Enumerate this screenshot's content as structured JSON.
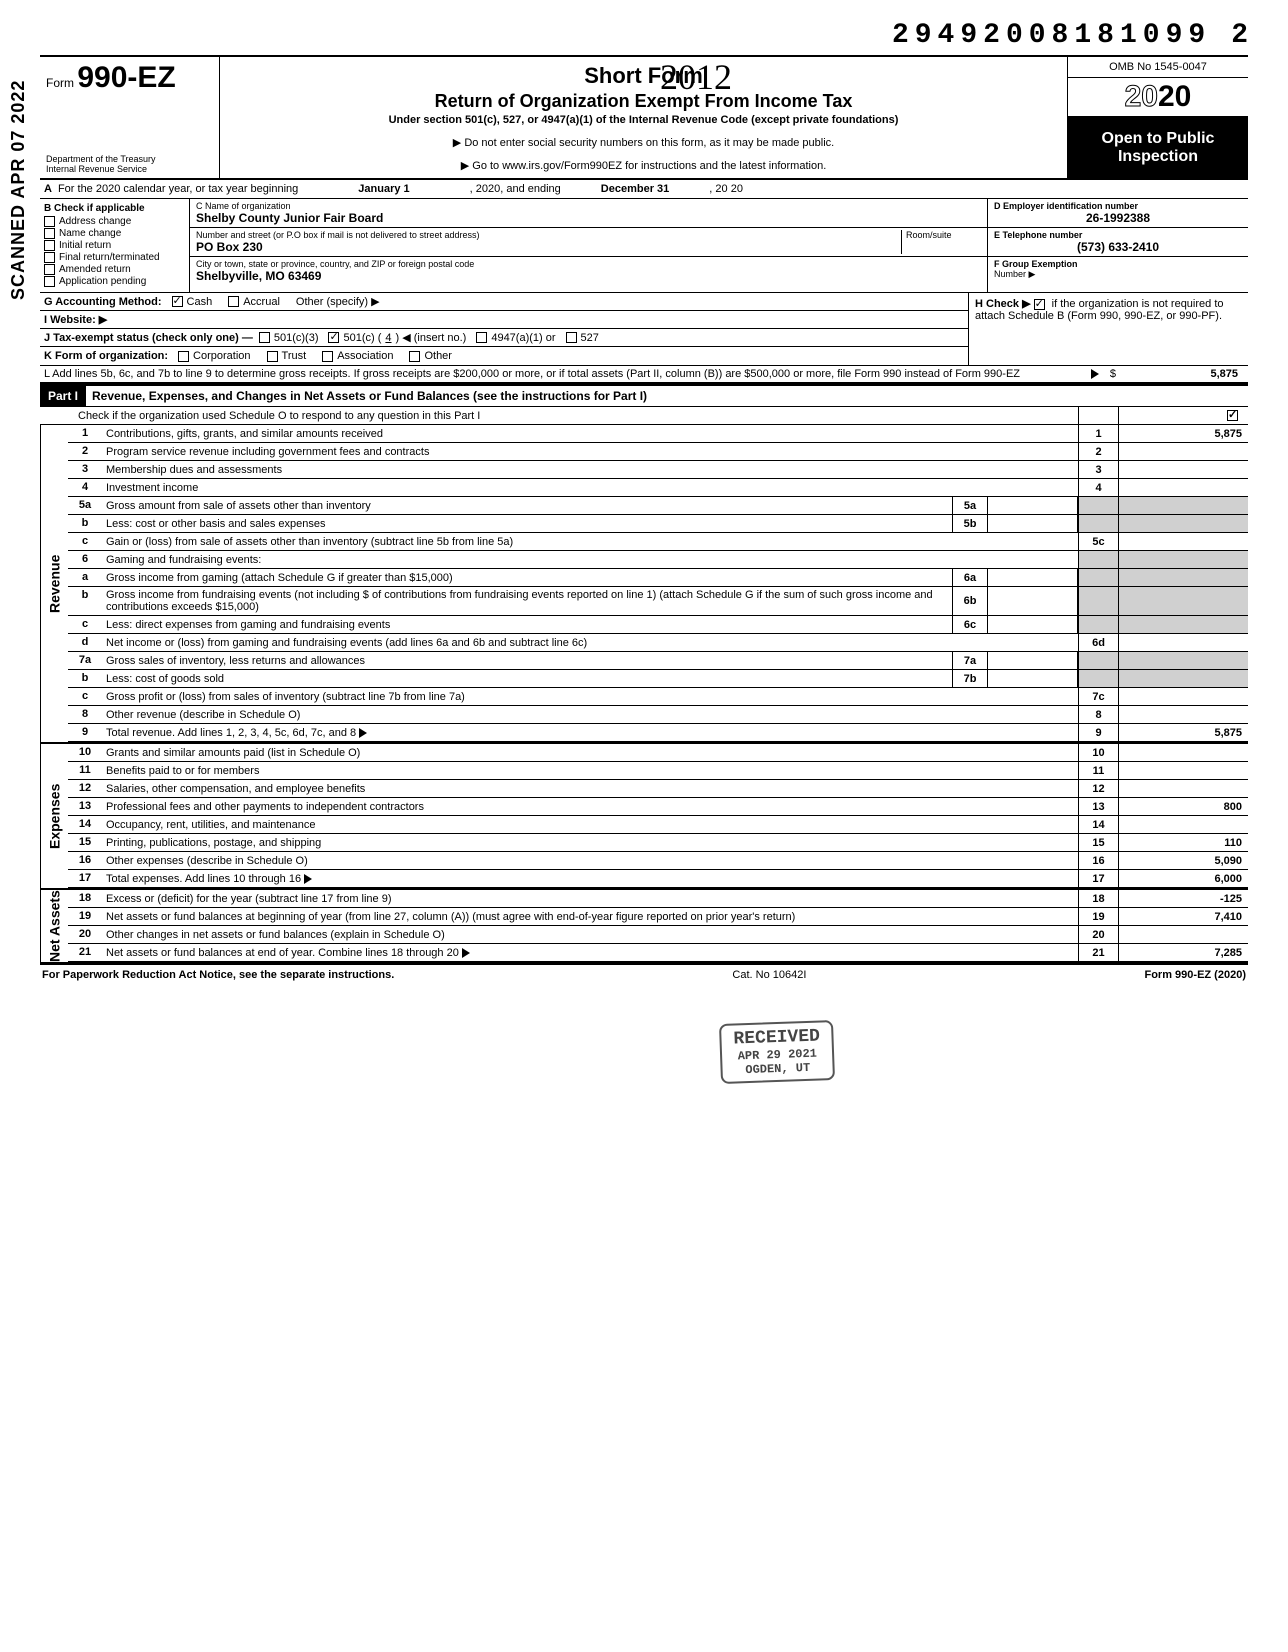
{
  "scan_stamp": "SCANNED APR 07 2022",
  "dln": "29492008181099",
  "dln_suffix": "2",
  "hand_year": "2012",
  "header": {
    "form_prefix": "Form",
    "form_number": "990-EZ",
    "dept": "Department of the Treasury\nInternal Revenue Service",
    "title1": "Short Form",
    "title2": "Return of Organization Exempt From Income Tax",
    "subtitle": "Under section 501(c), 527, or 4947(a)(1) of the Internal Revenue Code (except private foundations)",
    "note1": "▶ Do not enter social security numbers on this form, as it may be made public.",
    "note2": "▶ Go to www.irs.gov/Form990EZ for instructions and the latest information.",
    "omb": "OMB No  1545-0047",
    "year_outline": "20",
    "year_solid": "20",
    "open1": "Open to Public",
    "open2": "Inspection"
  },
  "row_a": {
    "label": "A",
    "text": "For the 2020 calendar year, or tax year beginning",
    "begin": "January 1",
    "mid": ", 2020, and ending",
    "end": "December 31",
    "tail": ", 20    20"
  },
  "col_b": {
    "header": "B  Check if applicable",
    "items": [
      "Address change",
      "Name change",
      "Initial return",
      "Final return/terminated",
      "Amended return",
      "Application pending"
    ]
  },
  "col_c": {
    "name_lbl": "C  Name of organization",
    "name": "Shelby County Junior Fair Board",
    "addr_lbl": "Number and street (or P.O  box if mail is not delivered to street address)",
    "room_lbl": "Room/suite",
    "addr": "PO Box 230",
    "city_lbl": "City or town, state or province, country, and ZIP or foreign postal code",
    "city": "Shelbyville, MO  63469"
  },
  "col_d": {
    "ein_lbl": "D Employer identification number",
    "ein": "26-1992388",
    "tel_lbl": "E Telephone number",
    "tel": "(573) 633-2410",
    "grp_lbl": "F Group Exemption",
    "grp2": "Number ▶"
  },
  "row_g": {
    "lbl": "G  Accounting Method:",
    "cash": "Cash",
    "accrual": "Accrual",
    "other": "Other (specify) ▶"
  },
  "row_h": {
    "text": "H  Check ▶",
    "tail": "if the organization is not required to attach Schedule B (Form 990, 990-EZ, or 990-PF)."
  },
  "row_i": {
    "lbl": "I   Website: ▶"
  },
  "row_j": {
    "lbl": "J  Tax-exempt status (check only one) —",
    "c3": "501(c)(3)",
    "c": "501(c) (",
    "cnum": "4",
    "ctail": ") ◀ (insert no.)",
    "a1": "4947(a)(1) or",
    "527": "527"
  },
  "row_k": {
    "lbl": "K  Form of organization:",
    "corp": "Corporation",
    "trust": "Trust",
    "assoc": "Association",
    "other": "Other"
  },
  "row_l": {
    "text": "L  Add lines 5b, 6c, and 7b to line 9 to determine gross receipts. If gross receipts are $200,000 or more, or if total assets (Part II, column (B)) are $500,000 or more, file Form 990 instead of Form 990-EZ",
    "amt": "5,875"
  },
  "part1": {
    "label": "Part I",
    "title": "Revenue, Expenses, and Changes in Net Assets or Fund Balances (see the instructions for Part I)",
    "check_line": "Check if the organization used Schedule O to respond to any question in this Part I"
  },
  "sections": {
    "revenue": "Revenue",
    "expenses": "Expenses",
    "netassets": "Net Assets"
  },
  "lines": [
    {
      "n": "1",
      "d": "Contributions, gifts, grants, and similar amounts received",
      "c": "1",
      "a": "5,875"
    },
    {
      "n": "2",
      "d": "Program service revenue including government fees and contracts",
      "c": "2",
      "a": ""
    },
    {
      "n": "3",
      "d": "Membership dues and assessments",
      "c": "3",
      "a": ""
    },
    {
      "n": "4",
      "d": "Investment income",
      "c": "4",
      "a": ""
    },
    {
      "n": "5a",
      "d": "Gross amount from sale of assets other than inventory",
      "in": "5a"
    },
    {
      "n": "b",
      "d": "Less: cost or other basis and sales expenses",
      "in": "5b"
    },
    {
      "n": "c",
      "d": "Gain or (loss) from sale of assets other than inventory (subtract line 5b from line 5a)",
      "c": "5c",
      "a": ""
    },
    {
      "n": "6",
      "d": "Gaming and fundraising events:"
    },
    {
      "n": "a",
      "d": "Gross income from gaming (attach Schedule G if greater than $15,000)",
      "in": "6a"
    },
    {
      "n": "b",
      "d": "Gross income from fundraising events (not including  $                          of contributions from fundraising events reported on line 1) (attach Schedule G if the sum of such gross income and contributions exceeds $15,000)",
      "in": "6b"
    },
    {
      "n": "c",
      "d": "Less: direct expenses from gaming and fundraising events",
      "in": "6c"
    },
    {
      "n": "d",
      "d": "Net income or (loss) from gaming and fundraising events (add lines 6a and 6b and subtract line 6c)",
      "c": "6d",
      "a": ""
    },
    {
      "n": "7a",
      "d": "Gross sales of inventory, less returns and allowances",
      "in": "7a"
    },
    {
      "n": "b",
      "d": "Less: cost of goods sold",
      "in": "7b"
    },
    {
      "n": "c",
      "d": "Gross profit or (loss) from sales of inventory (subtract line 7b from line 7a)",
      "c": "7c",
      "a": ""
    },
    {
      "n": "8",
      "d": "Other revenue (describe in Schedule O)",
      "c": "8",
      "a": ""
    },
    {
      "n": "9",
      "d": "Total revenue. Add lines 1, 2, 3, 4, 5c, 6d, 7c, and 8",
      "c": "9",
      "a": "5,875",
      "arrow": true
    },
    {
      "n": "10",
      "d": "Grants and similar amounts paid (list in Schedule O)",
      "c": "10",
      "a": ""
    },
    {
      "n": "11",
      "d": "Benefits paid to or for members",
      "c": "11",
      "a": ""
    },
    {
      "n": "12",
      "d": "Salaries, other compensation, and employee benefits",
      "c": "12",
      "a": ""
    },
    {
      "n": "13",
      "d": "Professional fees and other payments to independent contractors",
      "c": "13",
      "a": "800"
    },
    {
      "n": "14",
      "d": "Occupancy, rent, utilities, and maintenance",
      "c": "14",
      "a": ""
    },
    {
      "n": "15",
      "d": "Printing, publications, postage, and shipping",
      "c": "15",
      "a": "110"
    },
    {
      "n": "16",
      "d": "Other expenses (describe in Schedule O)",
      "c": "16",
      "a": "5,090"
    },
    {
      "n": "17",
      "d": "Total expenses. Add lines 10 through 16",
      "c": "17",
      "a": "6,000",
      "arrow": true
    },
    {
      "n": "18",
      "d": "Excess or (deficit) for the year (subtract line 17 from line 9)",
      "c": "18",
      "a": "-125"
    },
    {
      "n": "19",
      "d": "Net assets or fund balances at beginning of year (from line 27, column (A)) (must agree with end-of-year figure reported on prior year's return)",
      "c": "19",
      "a": "7,410"
    },
    {
      "n": "20",
      "d": "Other changes in net assets or fund balances (explain in Schedule O)",
      "c": "20",
      "a": ""
    },
    {
      "n": "21",
      "d": "Net assets or fund balances at end of year. Combine lines 18 through 20",
      "c": "21",
      "a": "7,285",
      "arrow": true
    }
  ],
  "stamp": {
    "l1": "RECEIVED",
    "l2": "APR 29 2021",
    "l3": "OGDEN, UT"
  },
  "footer": {
    "left": "For Paperwork Reduction Act Notice, see the separate instructions.",
    "mid": "Cat. No  10642I",
    "right": "Form 990-EZ (2020)"
  }
}
